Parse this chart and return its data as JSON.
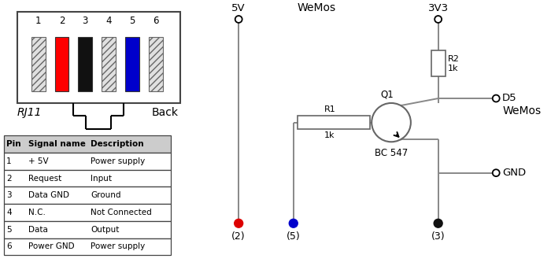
{
  "bg_color": "#ffffff",
  "pin_colors": [
    "#d4d4d4",
    "#ff0000",
    "#111111",
    "#d4d4d4",
    "#0000cc",
    "#d4d4d4"
  ],
  "pin_labels": [
    "1",
    "2",
    "3",
    "4",
    "5",
    "6"
  ],
  "table_headers": [
    "Pin",
    "Signal name",
    "Description"
  ],
  "table_rows": [
    [
      "1",
      "+ 5V",
      "Power supply"
    ],
    [
      "2",
      "Request",
      "Input"
    ],
    [
      "3",
      "Data GND",
      "Ground"
    ],
    [
      "4",
      "N.C.",
      "Not Connected"
    ],
    [
      "5",
      "Data",
      "Output"
    ],
    [
      "6",
      "Power GND",
      "Power supply"
    ]
  ],
  "rj11_label": "RJ11",
  "back_label": "Back",
  "fivev_label": "5V",
  "threev3_label": "3V3",
  "wemos_label": "WeMos",
  "r1_label": "R1",
  "r1_val": "1k",
  "r2_label": "R2",
  "r2_val": "1k",
  "q1_label": "Q1",
  "bc547_label": "BC 547",
  "d5_label": "D5",
  "gnd_label": "GND",
  "dot2_color": "#dd0000",
  "dot5_color": "#0000cc",
  "dot3_color": "#111111",
  "node2_label": "(2)",
  "node5_label": "(5)",
  "node3_label": "(3)",
  "wire_color": "#888888",
  "line_color": "#000000"
}
